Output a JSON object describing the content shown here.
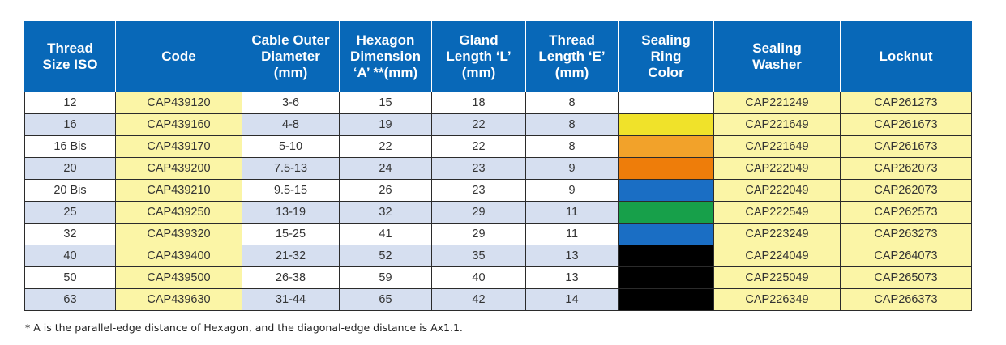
{
  "headers": [
    "Thread\nSize ISO",
    "Code",
    "Cable Outer\nDiameter\n(mm)",
    "Hexagon\nDimension\n‘A’ **(mm)",
    "Gland\nLength ‘L’\n(mm)",
    "Thread\nLength ‘E’\n(mm)",
    "Sealing\nRing\nColor",
    "Sealing\nWasher",
    "Locknut"
  ],
  "rows": [
    {
      "size": "12",
      "code": "CAP439120",
      "diameter": "3-6",
      "hexagon": "15",
      "gland": "18",
      "thread": "8",
      "color_name": "white",
      "color": "#ffffff",
      "washer": "CAP221249",
      "locknut": "CAP261273"
    },
    {
      "size": "16",
      "code": "CAP439160",
      "diameter": "4-8",
      "hexagon": "19",
      "gland": "22",
      "thread": "8",
      "color_name": "yellow",
      "color": "#f0e22a",
      "washer": "CAP221649",
      "locknut": "CAP261673"
    },
    {
      "size": "16 Bis",
      "code": "CAP439170",
      "diameter": "5-10",
      "hexagon": "22",
      "gland": "22",
      "thread": "8",
      "color_name": "light-orange",
      "color": "#f2a22a",
      "washer": "CAP221649",
      "locknut": "CAP261673"
    },
    {
      "size": "20",
      "code": "CAP439200",
      "diameter": "7.5-13",
      "hexagon": "24",
      "gland": "23",
      "thread": "9",
      "color_name": "orange",
      "color": "#ee7d0a",
      "washer": "CAP222049",
      "locknut": "CAP262073"
    },
    {
      "size": "20 Bis",
      "code": "CAP439210",
      "diameter": "9.5-15",
      "hexagon": "26",
      "gland": "23",
      "thread": "9",
      "color_name": "blue",
      "color": "#1a6ec4",
      "washer": "CAP222049",
      "locknut": "CAP262073"
    },
    {
      "size": "25",
      "code": "CAP439250",
      "diameter": "13-19",
      "hexagon": "32",
      "gland": "29",
      "thread": "11",
      "color_name": "green",
      "color": "#17a04a",
      "washer": "CAP222549",
      "locknut": "CAP262573"
    },
    {
      "size": "32",
      "code": "CAP439320",
      "diameter": "15-25",
      "hexagon": "41",
      "gland": "29",
      "thread": "11",
      "color_name": "blue",
      "color": "#1a6ec4",
      "washer": "CAP223249",
      "locknut": "CAP263273"
    },
    {
      "size": "40",
      "code": "CAP439400",
      "diameter": "21-32",
      "hexagon": "52",
      "gland": "35",
      "thread": "13",
      "color_name": "black",
      "color": "#000000",
      "washer": "CAP224049",
      "locknut": "CAP264073"
    },
    {
      "size": "50",
      "code": "CAP439500",
      "diameter": "26-38",
      "hexagon": "59",
      "gland": "40",
      "thread": "13",
      "color_name": "black",
      "color": "#000000",
      "washer": "CAP225049",
      "locknut": "CAP265073"
    },
    {
      "size": "63",
      "code": "CAP439630",
      "diameter": "31-44",
      "hexagon": "65",
      "gland": "42",
      "thread": "14",
      "color_name": "black",
      "color": "#000000",
      "washer": "CAP226349",
      "locknut": "CAP266373"
    }
  ],
  "footnote": "* A is the parallel-edge distance of Hexagon, and the diagonal-edge distance is Ax1.1.",
  "theme": {
    "header_bg": "#0868b8",
    "highlight_yellow": "#fbf5a6",
    "alt_row_blue": "#d6dff0"
  }
}
